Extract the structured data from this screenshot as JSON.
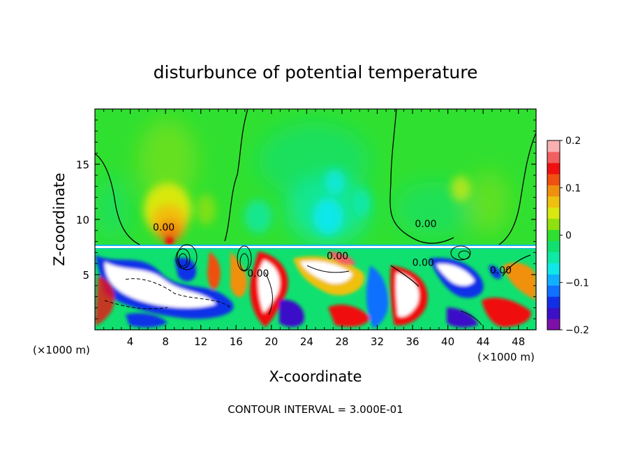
{
  "chart_data": {
    "type": "heatmap",
    "title": "disturbunce of potential temperature",
    "xlabel": "X-coordinate",
    "ylabel": "Z-coordinate",
    "x_unit_left": "(×1000 m)",
    "x_unit_right": "(×1000 m)",
    "footer": "CONTOUR INTERVAL = 3.000E-01",
    "xlim": [
      0,
      50
    ],
    "ylim": [
      0,
      20
    ],
    "x_ticks": [
      4,
      8,
      12,
      16,
      20,
      24,
      28,
      32,
      36,
      40,
      44,
      48
    ],
    "y_ticks": [
      5,
      10,
      15
    ],
    "colorbar": {
      "range": [
        -0.2,
        0.2
      ],
      "ticks": [
        {
          "value": 0.2,
          "label": "0.2"
        },
        {
          "value": 0.1,
          "label": "0.1"
        },
        {
          "value": 0,
          "label": "0"
        },
        {
          "value": -0.1,
          "label": "−0.1"
        },
        {
          "value": -0.2,
          "label": "−0.2"
        }
      ],
      "colors": [
        "#7d10a8",
        "#3a10c8",
        "#1030e8",
        "#1070ff",
        "#10b0ff",
        "#10e8e8",
        "#10e8a8",
        "#10e070",
        "#30e030",
        "#90e010",
        "#d8e810",
        "#f0c010",
        "#f09010",
        "#f05010",
        "#f01010",
        "#f06060",
        "#f8b0b0"
      ]
    },
    "contour_labels": [
      {
        "x": 7.8,
        "z": 9.0,
        "text": "0.00"
      },
      {
        "x": 37.5,
        "z": 9.3,
        "text": "0.00"
      },
      {
        "x": 27.5,
        "z": 6.4,
        "text": "0.00"
      },
      {
        "x": 37.2,
        "z": 5.8,
        "text": "0.00"
      },
      {
        "x": 18.5,
        "z": 4.8,
        "text": "0.00"
      },
      {
        "x": 46.0,
        "z": 5.1,
        "text": "0.00"
      }
    ]
  }
}
